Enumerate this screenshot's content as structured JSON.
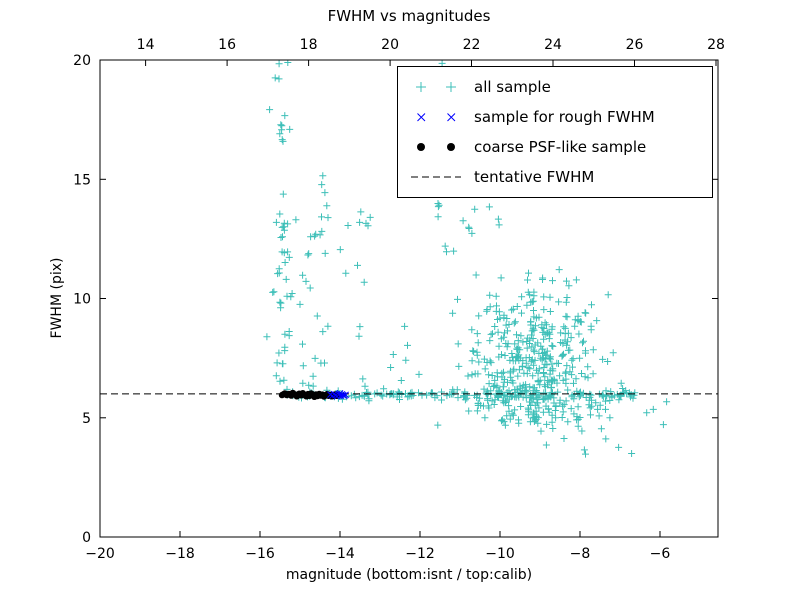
{
  "chart_data": {
    "type": "scatter",
    "title": "FWHM vs magnitudes",
    "xlabel": "magnitude (bottom:isnt / top:calib)",
    "ylabel": "FWHM (pix)",
    "seed": 1234,
    "grid": false,
    "legend_position": "upper right",
    "axes": {
      "x_bottom": {
        "lim": [
          -20,
          -4.55
        ],
        "ticks": [
          {
            "v": -20,
            "l": "−20"
          },
          {
            "v": -18,
            "l": "−18"
          },
          {
            "v": -16,
            "l": "−16"
          },
          {
            "v": -14,
            "l": "−14"
          },
          {
            "v": -12,
            "l": "−12"
          },
          {
            "v": -10,
            "l": "−10"
          },
          {
            "v": -8,
            "l": "−8"
          },
          {
            "v": -6,
            "l": "−6"
          }
        ]
      },
      "x_top": {
        "lim": [
          12.88,
          28.05
        ],
        "ticks": [
          {
            "v": 14,
            "l": "14"
          },
          {
            "v": 16,
            "l": "16"
          },
          {
            "v": 18,
            "l": "18"
          },
          {
            "v": 20,
            "l": "20"
          },
          {
            "v": 22,
            "l": "22"
          },
          {
            "v": 24,
            "l": "24"
          },
          {
            "v": 26,
            "l": "26"
          },
          {
            "v": 28,
            "l": "28"
          }
        ]
      },
      "y": {
        "lim": [
          0,
          20
        ],
        "ticks": [
          {
            "v": 0,
            "l": "0"
          },
          {
            "v": 5,
            "l": "5"
          },
          {
            "v": 10,
            "l": "10"
          },
          {
            "v": 15,
            "l": "15"
          },
          {
            "v": 20,
            "l": "20"
          }
        ]
      }
    },
    "series": [
      {
        "name": "all sample",
        "marker": "plus",
        "color": "#3dbfb8",
        "z": 1,
        "clusters": [
          {
            "n": 170,
            "x": {
              "dist": "uniform",
              "min": -15.35,
              "max": -6.6
            },
            "y": {
              "dist": "normal",
              "mean": 5.95,
              "sd": 0.1
            }
          },
          {
            "n": 40,
            "x": {
              "dist": "uniform",
              "min": -10.6,
              "max": -6.8
            },
            "y": {
              "dist": "normal",
              "mean": 5.75,
              "sd": 0.35
            }
          },
          {
            "n": 55,
            "x": {
              "dist": "normal",
              "mean": -15.45,
              "sd": 0.12
            },
            "y": {
              "dist": "uniform",
              "min": 6.1,
              "max": 20.2
            }
          },
          {
            "n": 8,
            "x": {
              "dist": "uniform",
              "min": -15.15,
              "max": -14.7
            },
            "y": {
              "dist": "uniform",
              "min": 7,
              "max": 13
            }
          },
          {
            "n": 22,
            "x": {
              "dist": "normal",
              "mean": -14.5,
              "sd": 0.22
            },
            "y": {
              "dist": "uniform",
              "min": 6.3,
              "max": 15.4
            }
          },
          {
            "n": 10,
            "x": {
              "dist": "uniform",
              "min": -14.05,
              "max": -13.2
            },
            "y": {
              "dist": "uniform",
              "min": 10.5,
              "max": 13.8
            }
          },
          {
            "n": 420,
            "x": {
              "dist": "normal",
              "mean": -9.15,
              "sd": 0.85,
              "min": -12.3,
              "max": -6.9
            },
            "y": {
              "dist": "normal",
              "mean": 6.9,
              "sd": 1.9,
              "min": 4.4,
              "max": 14.5
            }
          },
          {
            "n": 28,
            "x": {
              "dist": "uniform",
              "min": -11.8,
              "max": -9.2
            },
            "y": {
              "dist": "uniform",
              "min": 11.5,
              "max": 17.5
            }
          },
          {
            "n": 6,
            "x": {
              "dist": "uniform",
              "min": -11.5,
              "max": -10.6
            },
            "y": {
              "dist": "uniform",
              "min": 18,
              "max": 20.2
            }
          },
          {
            "n": 8,
            "x": {
              "dist": "uniform",
              "min": -10.2,
              "max": -6.4
            },
            "y": {
              "dist": "uniform",
              "min": 3.3,
              "max": 4.7
            }
          },
          {
            "n": 4,
            "x": {
              "dist": "uniform",
              "min": -6.6,
              "max": -5.8
            },
            "y": {
              "dist": "normal",
              "mean": 5.1,
              "sd": 0.3
            }
          },
          {
            "n": 12,
            "x": {
              "dist": "uniform",
              "min": -13.6,
              "max": -11.9
            },
            "y": {
              "dist": "power",
              "min": 6.2,
              "range": 3.2,
              "exp": 2
            }
          }
        ]
      },
      {
        "name": "sample for rough FWHM",
        "marker": "x",
        "color": "#0000ff",
        "z": 4,
        "points": [
          [
            -14.24,
            5.97
          ],
          [
            -14.19,
            5.92
          ],
          [
            -14.15,
            5.99
          ],
          [
            -14.11,
            5.95
          ],
          [
            -14.07,
            5.9
          ],
          [
            -14.03,
            5.97
          ],
          [
            -14.0,
            6.02
          ],
          [
            -13.98,
            5.93
          ],
          [
            -13.95,
            5.98
          ],
          [
            -13.92,
            5.95
          ],
          [
            -13.89,
            5.92
          ],
          [
            -13.86,
            5.96
          ]
        ]
      },
      {
        "name": "coarse PSF-like sample",
        "marker": "dot",
        "color": "#000000",
        "z": 3,
        "points": [
          [
            -15.45,
            5.95
          ],
          [
            -15.42,
            5.98
          ],
          [
            -15.38,
            6.02
          ],
          [
            -15.33,
            5.95
          ],
          [
            -15.28,
            6.0
          ],
          [
            -15.22,
            5.93
          ],
          [
            -15.18,
            6.04
          ],
          [
            -15.12,
            5.97
          ],
          [
            -15.08,
            5.9
          ],
          [
            -15.02,
            6.01
          ],
          [
            -14.97,
            5.94
          ],
          [
            -14.93,
            6.03
          ],
          [
            -14.88,
            5.96
          ],
          [
            -14.84,
            5.9
          ],
          [
            -14.8,
            5.99
          ],
          [
            -14.76,
            5.92
          ],
          [
            -14.72,
            6.02
          ],
          [
            -14.68,
            5.95
          ],
          [
            -14.64,
            5.88
          ],
          [
            -14.6,
            5.98
          ],
          [
            -14.56,
            5.91
          ],
          [
            -14.52,
            6.0
          ],
          [
            -14.48,
            5.93
          ],
          [
            -14.44,
            5.97
          ],
          [
            -14.4,
            5.89
          ],
          [
            -14.36,
            5.95
          ],
          [
            -14.32,
            5.99
          ],
          [
            -14.28,
            5.92
          ],
          [
            -14.24,
            5.96
          ],
          [
            -14.2,
            5.9
          ],
          [
            -14.16,
            5.94
          ],
          [
            -14.12,
            5.98
          ],
          [
            -14.08,
            5.92
          ],
          [
            -14.05,
            5.95
          ]
        ]
      },
      {
        "name": "tentative FWHM",
        "marker": "dashed-line",
        "color": "#0000ff",
        "z": 2,
        "hline": 6.0
      }
    ]
  }
}
